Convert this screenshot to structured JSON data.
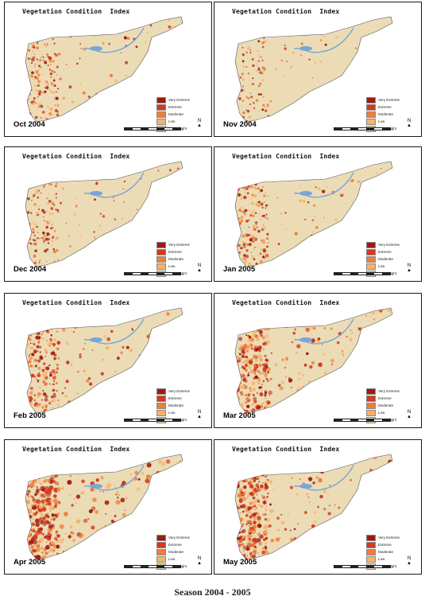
{
  "caption": "Season 2004 - 2005",
  "panel_title": "Vegetation Condition  Index",
  "legend": [
    {
      "label": "Very Extreme",
      "color": "#9e1b12"
    },
    {
      "label": "Extreme",
      "color": "#d33a1f"
    },
    {
      "label": "Moderate",
      "color": "#ee7f3a"
    },
    {
      "label": "Low",
      "color": "#f7b36a"
    },
    {
      "label": "No Drought",
      "color": "#ecdcb6"
    }
  ],
  "base_color": "#ecdcb6",
  "water_color": "#7aa6d6",
  "panels": [
    {
      "month": "Oct 2004",
      "drought_level": 0.25
    },
    {
      "month": "Nov 2004",
      "drought_level": 0.08
    },
    {
      "month": "Dec 2004",
      "drought_level": 0.18
    },
    {
      "month": "Jan 2005",
      "drought_level": 0.32
    },
    {
      "month": "Feb 2005",
      "drought_level": 0.38
    },
    {
      "month": "Mar 2005",
      "drought_level": 0.55
    },
    {
      "month": "Apr 2005",
      "drought_level": 0.75
    },
    {
      "month": "May 2005",
      "drought_level": 0.6
    }
  ]
}
